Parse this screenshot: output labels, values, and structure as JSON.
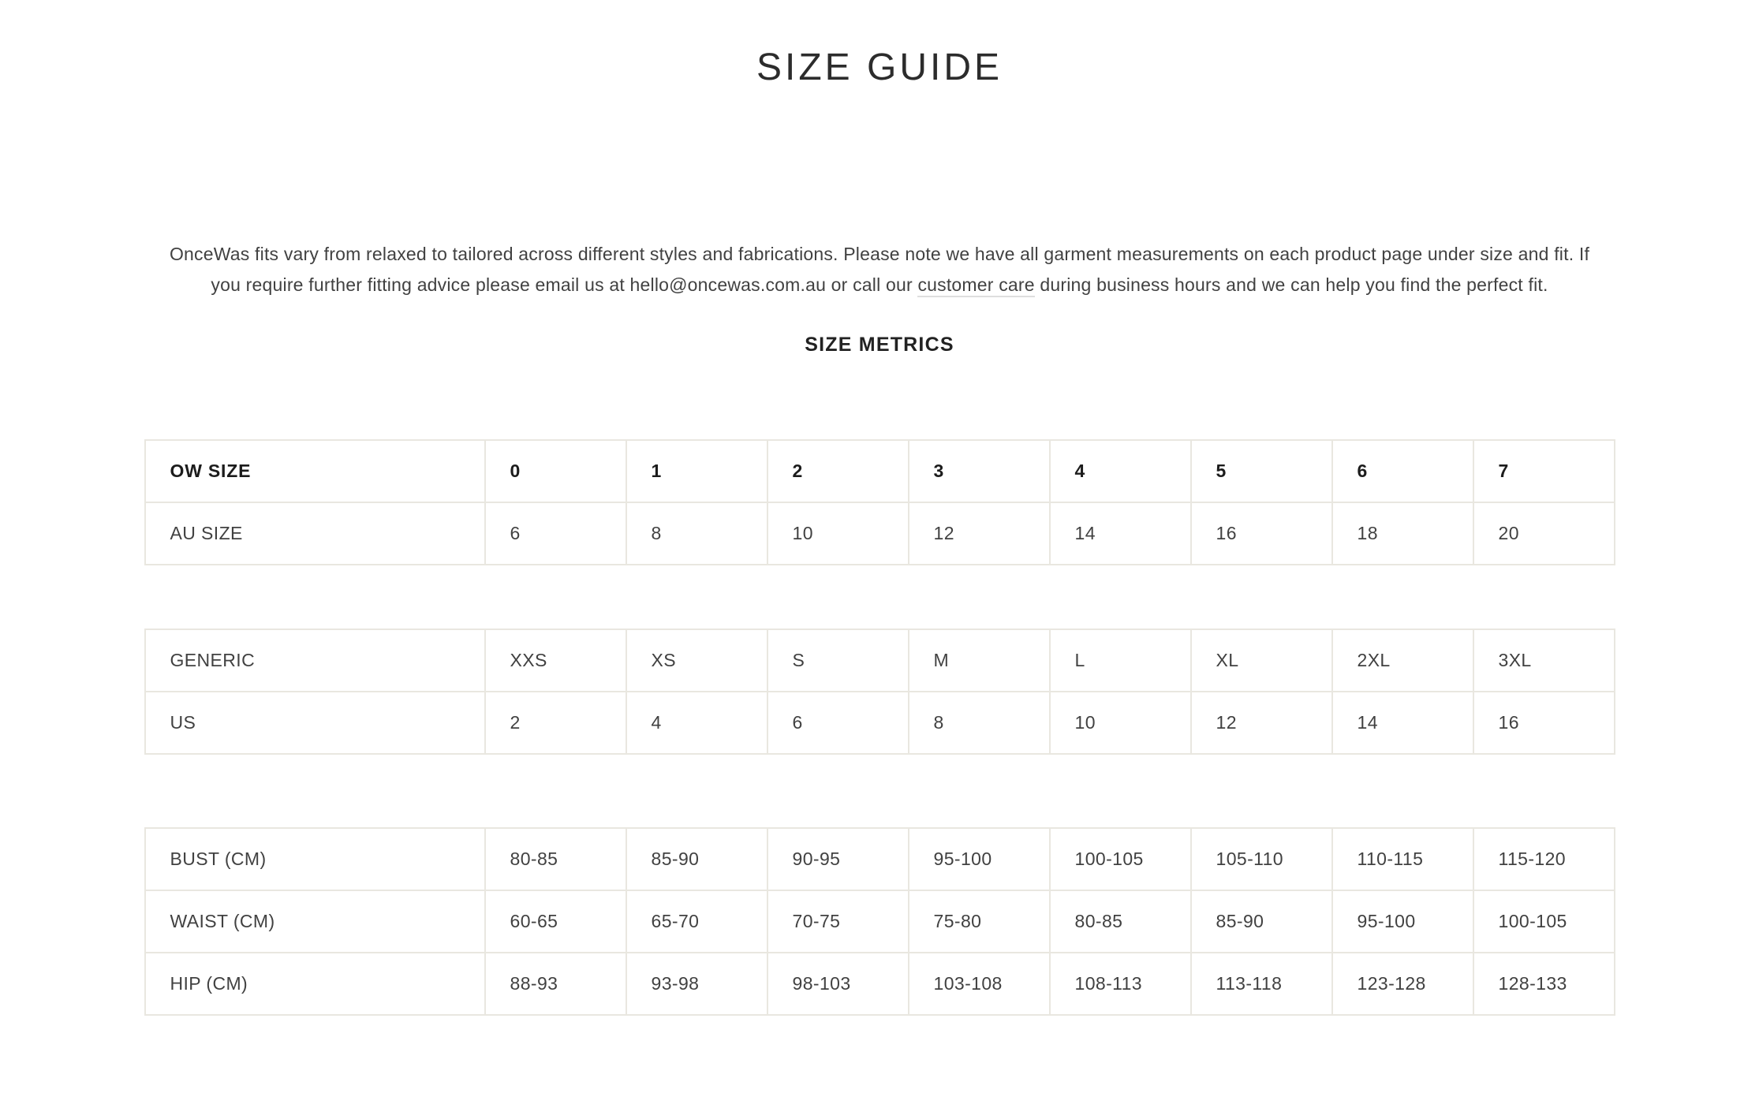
{
  "page": {
    "title": "SIZE GUIDE"
  },
  "intro": {
    "text_before_link": "OnceWas fits vary from relaxed to tailored across different styles and fabrications. Please note we have all garment measurements on each product page under size and fit. If you require further fitting advice please email us at hello@oncewas.com.au or call our ",
    "link_text": "customer care",
    "text_after_link": " during business hours and we can help you find the perfect fit."
  },
  "section": {
    "heading": "SIZE METRICS"
  },
  "colors": {
    "table_border": "#e9e7e0",
    "body_text": "#414141",
    "heading_text": "#2c2c2c"
  },
  "chart_data": {
    "type": "table",
    "title": "SIZE METRICS",
    "tables": [
      {
        "rows": [
          {
            "label": "OW SIZE",
            "values": [
              "0",
              "1",
              "2",
              "3",
              "4",
              "5",
              "6",
              "7"
            ]
          },
          {
            "label": "AU SIZE",
            "values": [
              "6",
              "8",
              "10",
              "12",
              "14",
              "16",
              "18",
              "20"
            ]
          }
        ]
      },
      {
        "rows": [
          {
            "label": "GENERIC",
            "values": [
              "XXS",
              "XS",
              "S",
              "M",
              "L",
              "XL",
              "2XL",
              "3XL"
            ]
          },
          {
            "label": "US",
            "values": [
              "2",
              "4",
              "6",
              "8",
              "10",
              "12",
              "14",
              "16"
            ]
          }
        ]
      },
      {
        "rows": [
          {
            "label": "BUST (CM)",
            "values": [
              "80-85",
              "85-90",
              "90-95",
              "95-100",
              "100-105",
              "105-110",
              "110-115",
              "115-120"
            ]
          },
          {
            "label": "WAIST (CM)",
            "values": [
              "60-65",
              "65-70",
              "70-75",
              "75-80",
              "80-85",
              "85-90",
              "95-100",
              "100-105"
            ]
          },
          {
            "label": "HIP (CM)",
            "values": [
              "88-93",
              "93-98",
              "98-103",
              "103-108",
              "108-113",
              "113-118",
              "123-128",
              "128-133"
            ]
          }
        ]
      }
    ]
  }
}
